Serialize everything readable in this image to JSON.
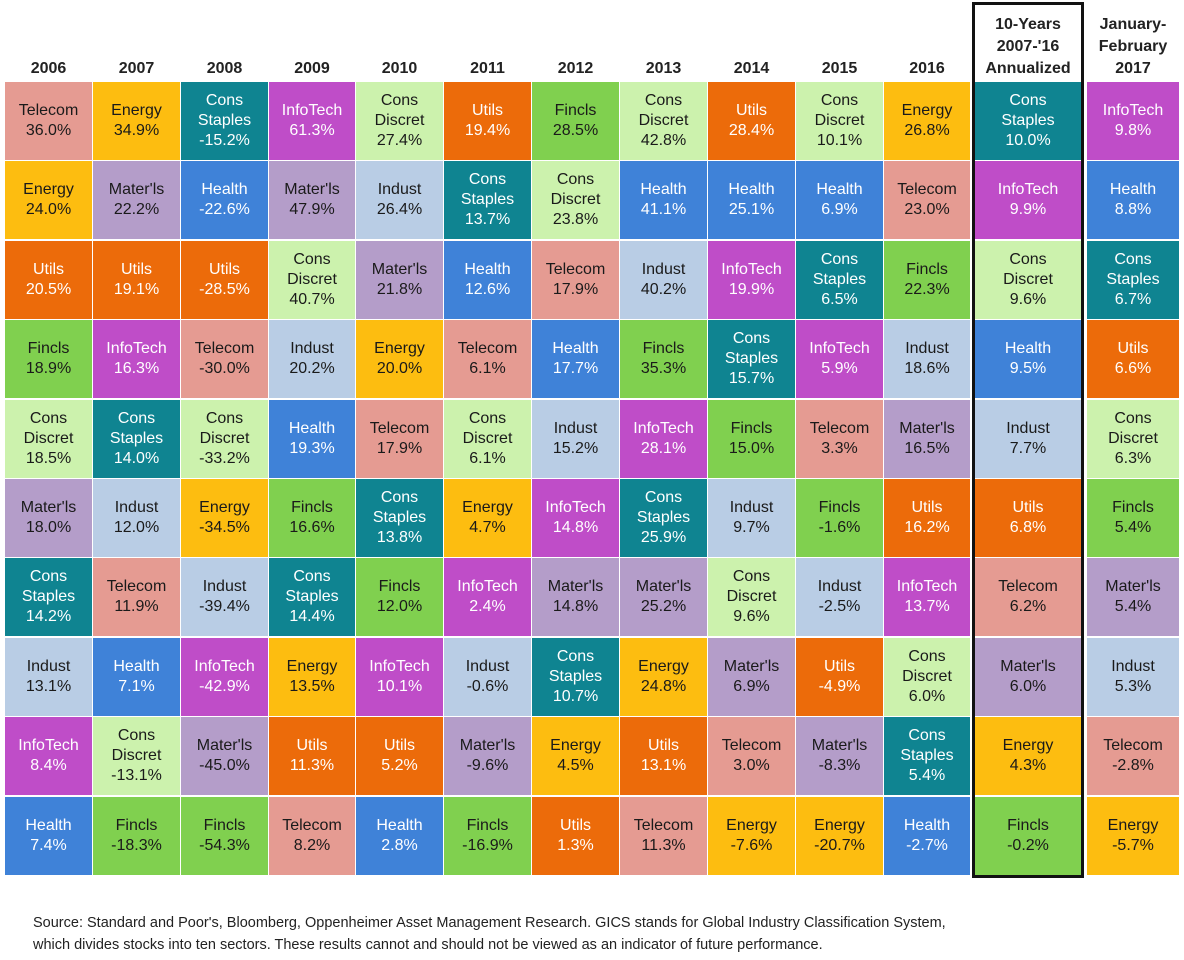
{
  "chart_data": {
    "type": "table",
    "columns": [
      {
        "label": "2006"
      },
      {
        "label": "2007"
      },
      {
        "label": "2008"
      },
      {
        "label": "2009"
      },
      {
        "label": "2010"
      },
      {
        "label": "2011"
      },
      {
        "label": "2012"
      },
      {
        "label": "2013"
      },
      {
        "label": "2014"
      },
      {
        "label": "2015"
      },
      {
        "label": "2016"
      },
      {
        "label": "10-Years\n2007-'16\nAnnualized"
      },
      {
        "label": "January-\nFebruary\n2017"
      }
    ],
    "cells": [
      [
        {
          "sector": "Telecom",
          "value": "36.0%"
        },
        {
          "sector": "Energy",
          "value": "34.9%"
        },
        {
          "sector": "Cons\nStaples",
          "value": "-15.2%"
        },
        {
          "sector": "InfoTech",
          "value": "61.3%"
        },
        {
          "sector": "Cons\nDiscret",
          "value": "27.4%"
        },
        {
          "sector": "Utils",
          "value": "19.4%"
        },
        {
          "sector": "Fincls",
          "value": "28.5%"
        },
        {
          "sector": "Cons\nDiscret",
          "value": "42.8%"
        },
        {
          "sector": "Utils",
          "value": "28.4%"
        },
        {
          "sector": "Cons\nDiscret",
          "value": "10.1%"
        },
        {
          "sector": "Energy",
          "value": "26.8%"
        },
        {
          "sector": "Cons\nStaples",
          "value": "10.0%"
        },
        {
          "sector": "InfoTech",
          "value": "9.8%"
        }
      ],
      [
        {
          "sector": "Energy",
          "value": "24.0%"
        },
        {
          "sector": "Mater'ls",
          "value": "22.2%"
        },
        {
          "sector": "Health",
          "value": "-22.6%"
        },
        {
          "sector": "Mater'ls",
          "value": "47.9%"
        },
        {
          "sector": "Indust",
          "value": "26.4%"
        },
        {
          "sector": "Cons\nStaples",
          "value": "13.7%"
        },
        {
          "sector": "Cons\nDiscret",
          "value": "23.8%"
        },
        {
          "sector": "Health",
          "value": "41.1%"
        },
        {
          "sector": "Health",
          "value": "25.1%"
        },
        {
          "sector": "Health",
          "value": "6.9%"
        },
        {
          "sector": "Telecom",
          "value": "23.0%"
        },
        {
          "sector": "InfoTech",
          "value": "9.9%"
        },
        {
          "sector": "Health",
          "value": "8.8%"
        }
      ],
      [
        {
          "sector": "Utils",
          "value": "20.5%"
        },
        {
          "sector": "Utils",
          "value": "19.1%"
        },
        {
          "sector": "Utils",
          "value": "-28.5%"
        },
        {
          "sector": "Cons\nDiscret",
          "value": "40.7%"
        },
        {
          "sector": "Mater'ls",
          "value": "21.8%"
        },
        {
          "sector": "Health",
          "value": "12.6%"
        },
        {
          "sector": "Telecom",
          "value": "17.9%"
        },
        {
          "sector": "Indust",
          "value": "40.2%"
        },
        {
          "sector": "InfoTech",
          "value": "19.9%"
        },
        {
          "sector": "Cons\nStaples",
          "value": "6.5%"
        },
        {
          "sector": "Fincls",
          "value": "22.3%"
        },
        {
          "sector": "Cons\nDiscret",
          "value": "9.6%"
        },
        {
          "sector": "Cons\nStaples",
          "value": "6.7%"
        }
      ],
      [
        {
          "sector": "Fincls",
          "value": "18.9%"
        },
        {
          "sector": "InfoTech",
          "value": "16.3%"
        },
        {
          "sector": "Telecom",
          "value": "-30.0%"
        },
        {
          "sector": "Indust",
          "value": "20.2%"
        },
        {
          "sector": "Energy",
          "value": "20.0%"
        },
        {
          "sector": "Telecom",
          "value": "6.1%"
        },
        {
          "sector": "Health",
          "value": "17.7%"
        },
        {
          "sector": "Fincls",
          "value": "35.3%"
        },
        {
          "sector": "Cons\nStaples",
          "value": "15.7%"
        },
        {
          "sector": "InfoTech",
          "value": "5.9%"
        },
        {
          "sector": "Indust",
          "value": "18.6%"
        },
        {
          "sector": "Health",
          "value": "9.5%"
        },
        {
          "sector": "Utils",
          "value": "6.6%"
        }
      ],
      [
        {
          "sector": "Cons\nDiscret",
          "value": "18.5%"
        },
        {
          "sector": "Cons\nStaples",
          "value": "14.0%"
        },
        {
          "sector": "Cons\nDiscret",
          "value": "-33.2%"
        },
        {
          "sector": "Health",
          "value": "19.3%"
        },
        {
          "sector": "Telecom",
          "value": "17.9%"
        },
        {
          "sector": "Cons\nDiscret",
          "value": "6.1%"
        },
        {
          "sector": "Indust",
          "value": "15.2%"
        },
        {
          "sector": "InfoTech",
          "value": "28.1%"
        },
        {
          "sector": "Fincls",
          "value": "15.0%"
        },
        {
          "sector": "Telecom",
          "value": "3.3%"
        },
        {
          "sector": "Mater'ls",
          "value": "16.5%"
        },
        {
          "sector": "Indust",
          "value": "7.7%"
        },
        {
          "sector": "Cons\nDiscret",
          "value": "6.3%"
        }
      ],
      [
        {
          "sector": "Mater'ls",
          "value": "18.0%"
        },
        {
          "sector": "Indust",
          "value": "12.0%"
        },
        {
          "sector": "Energy",
          "value": "-34.5%"
        },
        {
          "sector": "Fincls",
          "value": "16.6%"
        },
        {
          "sector": "Cons\nStaples",
          "value": "13.8%"
        },
        {
          "sector": "Energy",
          "value": "4.7%"
        },
        {
          "sector": "InfoTech",
          "value": "14.8%"
        },
        {
          "sector": "Cons\nStaples",
          "value": "25.9%"
        },
        {
          "sector": "Indust",
          "value": "9.7%"
        },
        {
          "sector": "Fincls",
          "value": "-1.6%"
        },
        {
          "sector": "Utils",
          "value": "16.2%"
        },
        {
          "sector": "Utils",
          "value": "6.8%"
        },
        {
          "sector": "Fincls",
          "value": "5.4%"
        }
      ],
      [
        {
          "sector": "Cons\nStaples",
          "value": "14.2%"
        },
        {
          "sector": "Telecom",
          "value": "11.9%"
        },
        {
          "sector": "Indust",
          "value": "-39.4%"
        },
        {
          "sector": "Cons\nStaples",
          "value": "14.4%"
        },
        {
          "sector": "Fincls",
          "value": "12.0%"
        },
        {
          "sector": "InfoTech",
          "value": "2.4%"
        },
        {
          "sector": "Mater'ls",
          "value": "14.8%"
        },
        {
          "sector": "Mater'ls",
          "value": "25.2%"
        },
        {
          "sector": "Cons\nDiscret",
          "value": "9.6%"
        },
        {
          "sector": "Indust",
          "value": "-2.5%"
        },
        {
          "sector": "InfoTech",
          "value": "13.7%"
        },
        {
          "sector": "Telecom",
          "value": "6.2%"
        },
        {
          "sector": "Mater'ls",
          "value": "5.4%"
        }
      ],
      [
        {
          "sector": "Indust",
          "value": "13.1%"
        },
        {
          "sector": "Health",
          "value": "7.1%"
        },
        {
          "sector": "InfoTech",
          "value": "-42.9%"
        },
        {
          "sector": "Energy",
          "value": "13.5%"
        },
        {
          "sector": "InfoTech",
          "value": "10.1%"
        },
        {
          "sector": "Indust",
          "value": "-0.6%"
        },
        {
          "sector": "Cons\nStaples",
          "value": "10.7%"
        },
        {
          "sector": "Energy",
          "value": "24.8%"
        },
        {
          "sector": "Mater'ls",
          "value": "6.9%"
        },
        {
          "sector": "Utils",
          "value": "-4.9%"
        },
        {
          "sector": "Cons\nDiscret",
          "value": "6.0%"
        },
        {
          "sector": "Mater'ls",
          "value": "6.0%"
        },
        {
          "sector": "Indust",
          "value": "5.3%"
        }
      ],
      [
        {
          "sector": "InfoTech",
          "value": "8.4%"
        },
        {
          "sector": "Cons\nDiscret",
          "value": "-13.1%"
        },
        {
          "sector": "Mater'ls",
          "value": "-45.0%"
        },
        {
          "sector": "Utils",
          "value": "11.3%"
        },
        {
          "sector": "Utils",
          "value": "5.2%"
        },
        {
          "sector": "Mater'ls",
          "value": "-9.6%"
        },
        {
          "sector": "Energy",
          "value": "4.5%"
        },
        {
          "sector": "Utils",
          "value": "13.1%"
        },
        {
          "sector": "Telecom",
          "value": "3.0%"
        },
        {
          "sector": "Mater'ls",
          "value": "-8.3%"
        },
        {
          "sector": "Cons\nStaples",
          "value": "5.4%"
        },
        {
          "sector": "Energy",
          "value": "4.3%"
        },
        {
          "sector": "Telecom",
          "value": "-2.8%"
        }
      ],
      [
        {
          "sector": "Health",
          "value": "7.4%"
        },
        {
          "sector": "Fincls",
          "value": "-18.3%"
        },
        {
          "sector": "Fincls",
          "value": "-54.3%"
        },
        {
          "sector": "Telecom",
          "value": "8.2%"
        },
        {
          "sector": "Health",
          "value": "2.8%"
        },
        {
          "sector": "Fincls",
          "value": "-16.9%"
        },
        {
          "sector": "Utils",
          "value": "1.3%"
        },
        {
          "sector": "Telecom",
          "value": "11.3%"
        },
        {
          "sector": "Energy",
          "value": "-7.6%"
        },
        {
          "sector": "Energy",
          "value": "-20.7%"
        },
        {
          "sector": "Health",
          "value": "-2.7%"
        },
        {
          "sector": "Fincls",
          "value": "-0.2%"
        },
        {
          "sector": "Energy",
          "value": "-5.7%"
        }
      ]
    ],
    "sector_colors": {
      "Telecom": {
        "fill": "#e59b92",
        "text": "#1a1a1a"
      },
      "Energy": {
        "fill": "#fdbd10",
        "text": "#1a1a1a"
      },
      "Cons\nStaples": {
        "fill": "#0f8491",
        "text": "#ffffff"
      },
      "InfoTech": {
        "fill": "#bf4dc8",
        "text": "#ffffff"
      },
      "Cons\nDiscret": {
        "fill": "#ccf2ad",
        "text": "#1a1a1a"
      },
      "Utils": {
        "fill": "#ec6b0a",
        "text": "#ffffff"
      },
      "Fincls": {
        "fill": "#80d04f",
        "text": "#1a1a1a"
      },
      "Mater'ls": {
        "fill": "#b49dc9",
        "text": "#1a1a1a"
      },
      "Health": {
        "fill": "#3f82d8",
        "text": "#ffffff"
      },
      "Indust": {
        "fill": "#b9cde5",
        "text": "#1a1a1a"
      }
    },
    "highlighted_column": "10-Years\n2007-'16\nAnnualized"
  },
  "source_note": [
    "Source:  Standard and Poor's, Bloomberg, Oppenheimer Asset Management Research. GICS stands for Global Industry Classification System,",
    "which divides stocks into ten sectors. These results cannot and should not be viewed as an indicator of future performance."
  ]
}
